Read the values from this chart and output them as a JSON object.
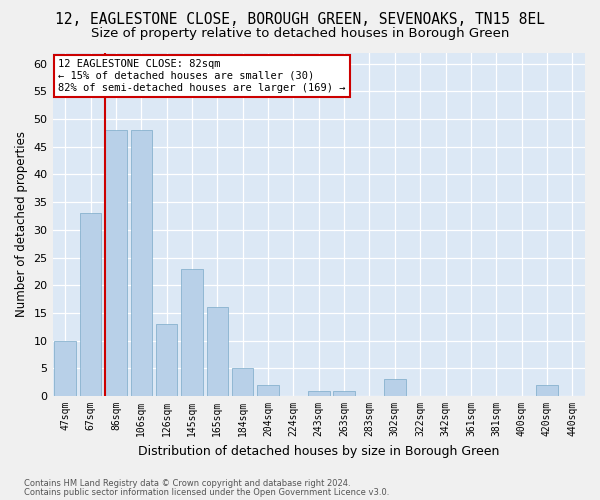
{
  "title": "12, EAGLESTONE CLOSE, BOROUGH GREEN, SEVENOAKS, TN15 8EL",
  "subtitle": "Size of property relative to detached houses in Borough Green",
  "xlabel": "Distribution of detached houses by size in Borough Green",
  "ylabel": "Number of detached properties",
  "categories": [
    "47sqm",
    "67sqm",
    "86sqm",
    "106sqm",
    "126sqm",
    "145sqm",
    "165sqm",
    "184sqm",
    "204sqm",
    "224sqm",
    "243sqm",
    "263sqm",
    "283sqm",
    "302sqm",
    "322sqm",
    "342sqm",
    "361sqm",
    "381sqm",
    "400sqm",
    "420sqm",
    "440sqm"
  ],
  "values": [
    10,
    33,
    48,
    48,
    13,
    23,
    16,
    5,
    2,
    0,
    1,
    1,
    0,
    3,
    0,
    0,
    0,
    0,
    0,
    2,
    0
  ],
  "bar_color": "#b8d0e8",
  "bar_edgecolor": "#7aaac8",
  "marker_index": 2,
  "marker_color": "#cc0000",
  "ylim": [
    0,
    62
  ],
  "yticks": [
    0,
    5,
    10,
    15,
    20,
    25,
    30,
    35,
    40,
    45,
    50,
    55,
    60
  ],
  "annotation_title": "12 EAGLESTONE CLOSE: 82sqm",
  "annotation_line1": "← 15% of detached houses are smaller (30)",
  "annotation_line2": "82% of semi-detached houses are larger (169) →",
  "annotation_box_facecolor": "#ffffff",
  "annotation_box_edgecolor": "#cc0000",
  "footer1": "Contains HM Land Registry data © Crown copyright and database right 2024.",
  "footer2": "Contains public sector information licensed under the Open Government Licence v3.0.",
  "fig_facecolor": "#f0f0f0",
  "ax_facecolor": "#dce8f5",
  "grid_color": "#ffffff",
  "title_fontsize": 10.5,
  "subtitle_fontsize": 9.5,
  "ylabel_fontsize": 8.5,
  "xlabel_fontsize": 9,
  "tick_fontsize": 7,
  "footer_fontsize": 6,
  "ann_fontsize": 7.5
}
